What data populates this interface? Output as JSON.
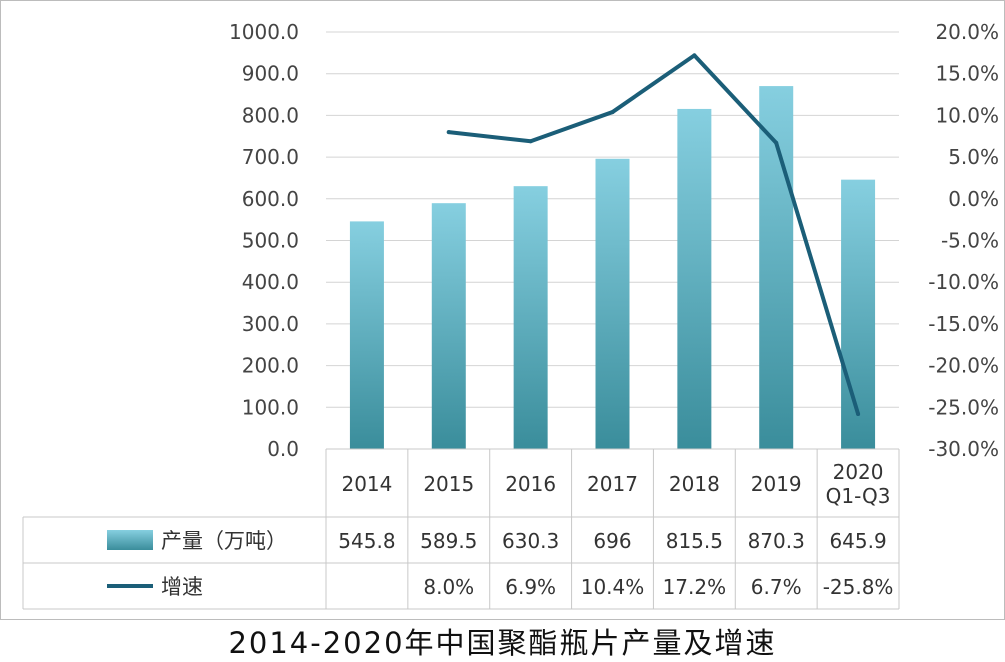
{
  "chart_data": {
    "type": "bar",
    "title": "2014-2020年中国聚酯瓶片产量及增速",
    "categories": [
      [
        "2014"
      ],
      [
        "2015"
      ],
      [
        "2016"
      ],
      [
        "2017"
      ],
      [
        "2018"
      ],
      [
        "2019"
      ],
      [
        "2020",
        "Q1-Q3"
      ]
    ],
    "series": [
      {
        "name": "产量（万吨）",
        "type": "bar",
        "axis": "left",
        "values": [
          545.8,
          589.5,
          630.3,
          696,
          815.5,
          870.3,
          645.9
        ],
        "labels": [
          "545.8",
          "589.5",
          "630.3",
          "696",
          "815.5",
          "870.3",
          "645.9"
        ]
      },
      {
        "name": "增速",
        "type": "line",
        "axis": "right",
        "values": [
          null,
          8.0,
          6.9,
          10.4,
          17.2,
          6.7,
          -25.8
        ],
        "labels": [
          "",
          "8.0%",
          "6.9%",
          "10.4%",
          "17.2%",
          "6.7%",
          "-25.8%"
        ]
      }
    ],
    "y_left": {
      "min": 0,
      "max": 1000,
      "step": 100,
      "ticks": [
        "0.0",
        "100.0",
        "200.0",
        "300.0",
        "400.0",
        "500.0",
        "600.0",
        "700.0",
        "800.0",
        "900.0",
        "1000.0"
      ]
    },
    "y_right": {
      "min": -30,
      "max": 20,
      "step": 5,
      "ticks": [
        "-30.0%",
        "-25.0%",
        "-20.0%",
        "-15.0%",
        "-10.0%",
        "-5.0%",
        "0.0%",
        "5.0%",
        "10.0%",
        "15.0%",
        "20.0%"
      ]
    },
    "grid": true,
    "legend": "data-table",
    "colors": {
      "bar_top": "#86cfe0",
      "bar_bottom": "#3a8d9b",
      "line": "#1b5e78",
      "grid": "#d4d4d4",
      "table_border": "#c8c8c8"
    }
  }
}
